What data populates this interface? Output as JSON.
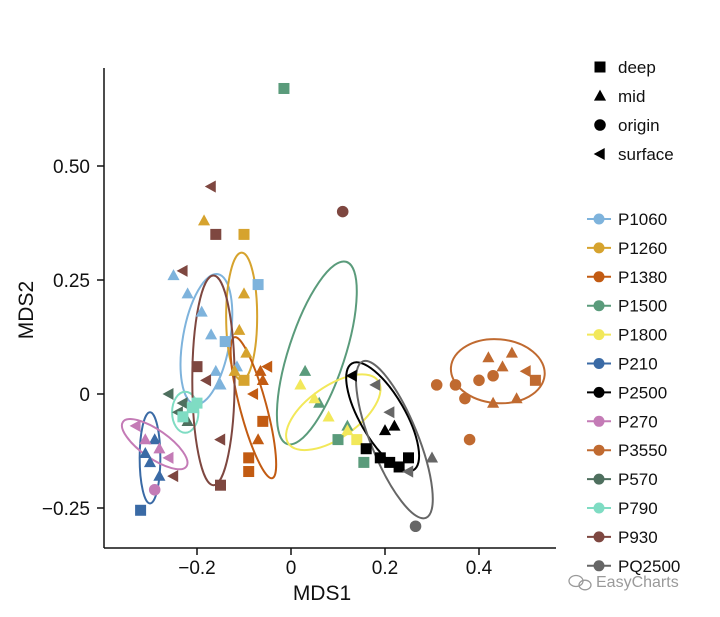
{
  "watermark": "EasyCharts",
  "chart_data": {
    "type": "scatter",
    "title": "",
    "xlabel": "MDS1",
    "ylabel": "MDS2",
    "xlim": [
      -0.37,
      0.55
    ],
    "ylim": [
      -0.34,
      0.72
    ],
    "x_ticks": [
      -0.2,
      0.0,
      0.2,
      0.4
    ],
    "x_tick_labels": [
      "−0.2",
      "0",
      "0.2",
      "0.4"
    ],
    "y_ticks": [
      -0.25,
      0.0,
      0.25,
      0.5
    ],
    "y_tick_labels": [
      "−0.25",
      "0",
      "0.25",
      "0.50"
    ],
    "grid": false,
    "shape_legend": [
      {
        "shape": "square",
        "label": "deep"
      },
      {
        "shape": "triangle",
        "label": "mid"
      },
      {
        "shape": "circle",
        "label": "origin"
      },
      {
        "shape": "left-triangle",
        "label": "surface"
      }
    ],
    "series": [
      {
        "name": "P1060",
        "color": "#7eb3dc",
        "ellipse": {
          "cx": -0.18,
          "cy": 0.12,
          "rx": 0.05,
          "ry": 0.145,
          "angle": 10
        },
        "points": [
          {
            "x": -0.25,
            "y": 0.26,
            "shape": "triangle"
          },
          {
            "x": -0.22,
            "y": 0.22,
            "shape": "triangle"
          },
          {
            "x": -0.19,
            "y": 0.18,
            "shape": "triangle"
          },
          {
            "x": -0.17,
            "y": 0.13,
            "shape": "triangle"
          },
          {
            "x": -0.16,
            "y": 0.05,
            "shape": "triangle"
          },
          {
            "x": -0.15,
            "y": 0.02,
            "shape": "triangle"
          },
          {
            "x": -0.14,
            "y": 0.115,
            "shape": "square"
          },
          {
            "x": -0.115,
            "y": 0.06,
            "shape": "triangle"
          },
          {
            "x": -0.07,
            "y": 0.24,
            "shape": "square"
          }
        ]
      },
      {
        "name": "P1260",
        "color": "#d6a32e",
        "ellipse": {
          "cx": -0.105,
          "cy": 0.17,
          "rx": 0.033,
          "ry": 0.14,
          "angle": 0
        },
        "points": [
          {
            "x": -0.185,
            "y": 0.38,
            "shape": "triangle"
          },
          {
            "x": -0.1,
            "y": 0.35,
            "shape": "square"
          },
          {
            "x": -0.1,
            "y": 0.22,
            "shape": "triangle"
          },
          {
            "x": -0.11,
            "y": 0.14,
            "shape": "triangle"
          },
          {
            "x": -0.095,
            "y": 0.09,
            "shape": "triangle"
          },
          {
            "x": -0.12,
            "y": 0.05,
            "shape": "triangle"
          },
          {
            "x": -0.1,
            "y": 0.03,
            "shape": "square"
          }
        ]
      },
      {
        "name": "P1380",
        "color": "#c25b12",
        "ellipse": {
          "cx": -0.08,
          "cy": -0.03,
          "rx": 0.028,
          "ry": 0.16,
          "angle": -15
        },
        "points": [
          {
            "x": -0.065,
            "y": 0.05,
            "shape": "triangle"
          },
          {
            "x": -0.06,
            "y": 0.03,
            "shape": "triangle"
          },
          {
            "x": -0.06,
            "y": -0.06,
            "shape": "square"
          },
          {
            "x": -0.07,
            "y": -0.1,
            "shape": "triangle"
          },
          {
            "x": -0.09,
            "y": -0.14,
            "shape": "square"
          },
          {
            "x": -0.09,
            "y": -0.17,
            "shape": "square"
          },
          {
            "x": -0.08,
            "y": 0.0,
            "shape": "left-triangle"
          },
          {
            "x": -0.05,
            "y": 0.06,
            "shape": "left-triangle"
          }
        ]
      },
      {
        "name": "P1500",
        "color": "#5a9b7b",
        "ellipse": {
          "cx": 0.055,
          "cy": 0.09,
          "rx": 0.06,
          "ry": 0.21,
          "angle": 18
        },
        "points": [
          {
            "x": -0.015,
            "y": 0.67,
            "shape": "square"
          },
          {
            "x": 0.03,
            "y": 0.05,
            "shape": "triangle"
          },
          {
            "x": 0.06,
            "y": -0.02,
            "shape": "triangle"
          },
          {
            "x": 0.1,
            "y": -0.1,
            "shape": "square"
          },
          {
            "x": 0.155,
            "y": -0.15,
            "shape": "square"
          },
          {
            "x": 0.12,
            "y": -0.07,
            "shape": "triangle"
          }
        ]
      },
      {
        "name": "P1800",
        "color": "#f2e85a",
        "ellipse": {
          "cx": 0.09,
          "cy": -0.04,
          "rx": 0.055,
          "ry": 0.12,
          "angle": 55
        },
        "points": [
          {
            "x": 0.02,
            "y": 0.02,
            "shape": "triangle"
          },
          {
            "x": 0.05,
            "y": -0.01,
            "shape": "triangle"
          },
          {
            "x": 0.08,
            "y": -0.05,
            "shape": "triangle"
          },
          {
            "x": 0.12,
            "y": -0.08,
            "shape": "triangle"
          },
          {
            "x": 0.14,
            "y": -0.1,
            "shape": "square"
          }
        ]
      },
      {
        "name": "P210",
        "color": "#3a6aa5",
        "ellipse": {
          "cx": -0.3,
          "cy": -0.14,
          "rx": 0.022,
          "ry": 0.1,
          "angle": 0
        },
        "points": [
          {
            "x": -0.32,
            "y": -0.255,
            "shape": "square"
          },
          {
            "x": -0.3,
            "y": -0.15,
            "shape": "triangle"
          },
          {
            "x": -0.29,
            "y": -0.1,
            "shape": "triangle"
          },
          {
            "x": -0.28,
            "y": -0.18,
            "shape": "triangle"
          },
          {
            "x": -0.31,
            "y": -0.13,
            "shape": "triangle"
          }
        ]
      },
      {
        "name": "P2500",
        "color": "#000000",
        "ellipse": {
          "cx": 0.195,
          "cy": -0.05,
          "rx": 0.048,
          "ry": 0.135,
          "angle": -30
        },
        "points": [
          {
            "x": 0.13,
            "y": 0.04,
            "shape": "left-triangle"
          },
          {
            "x": 0.2,
            "y": -0.08,
            "shape": "triangle"
          },
          {
            "x": 0.22,
            "y": -0.07,
            "shape": "triangle"
          },
          {
            "x": 0.16,
            "y": -0.12,
            "shape": "square"
          },
          {
            "x": 0.19,
            "y": -0.14,
            "shape": "square"
          },
          {
            "x": 0.21,
            "y": -0.15,
            "shape": "square"
          },
          {
            "x": 0.23,
            "y": -0.16,
            "shape": "square"
          },
          {
            "x": 0.25,
            "y": -0.14,
            "shape": "square"
          }
        ]
      },
      {
        "name": "P270",
        "color": "#c47bb6",
        "ellipse": {
          "cx": -0.29,
          "cy": -0.11,
          "rx": 0.03,
          "ry": 0.085,
          "angle": -55
        },
        "points": [
          {
            "x": -0.33,
            "y": -0.07,
            "shape": "left-triangle"
          },
          {
            "x": -0.31,
            "y": -0.1,
            "shape": "triangle"
          },
          {
            "x": -0.28,
            "y": -0.12,
            "shape": "triangle"
          },
          {
            "x": -0.26,
            "y": -0.14,
            "shape": "left-triangle"
          },
          {
            "x": -0.29,
            "y": -0.21,
            "shape": "circle"
          }
        ]
      },
      {
        "name": "P3550",
        "color": "#c06a30",
        "ellipse": {
          "cx": 0.44,
          "cy": 0.05,
          "rx": 0.1,
          "ry": 0.07,
          "angle": 5
        },
        "points": [
          {
            "x": 0.31,
            "y": 0.02,
            "shape": "circle"
          },
          {
            "x": 0.35,
            "y": 0.02,
            "shape": "circle"
          },
          {
            "x": 0.37,
            "y": -0.01,
            "shape": "circle"
          },
          {
            "x": 0.4,
            "y": 0.03,
            "shape": "circle"
          },
          {
            "x": 0.43,
            "y": 0.04,
            "shape": "circle"
          },
          {
            "x": 0.38,
            "y": -0.1,
            "shape": "circle"
          },
          {
            "x": 0.42,
            "y": 0.08,
            "shape": "triangle"
          },
          {
            "x": 0.45,
            "y": 0.06,
            "shape": "triangle"
          },
          {
            "x": 0.47,
            "y": 0.09,
            "shape": "triangle"
          },
          {
            "x": 0.5,
            "y": 0.05,
            "shape": "left-triangle"
          },
          {
            "x": 0.52,
            "y": 0.03,
            "shape": "square"
          },
          {
            "x": 0.43,
            "y": -0.02,
            "shape": "triangle"
          },
          {
            "x": 0.48,
            "y": -0.01,
            "shape": "triangle"
          }
        ]
      },
      {
        "name": "P570",
        "color": "#4e6f5e",
        "ellipse": null,
        "points": [
          {
            "x": -0.26,
            "y": 0.0,
            "shape": "left-triangle"
          },
          {
            "x": -0.24,
            "y": -0.04,
            "shape": "left-triangle"
          },
          {
            "x": -0.22,
            "y": -0.06,
            "shape": "triangle"
          },
          {
            "x": -0.23,
            "y": -0.02,
            "shape": "left-triangle"
          }
        ]
      },
      {
        "name": "P790",
        "color": "#7fdcc3",
        "ellipse": {
          "cx": -0.225,
          "cy": -0.04,
          "rx": 0.028,
          "ry": 0.045,
          "angle": 0
        },
        "points": [
          {
            "x": -0.21,
            "y": -0.03,
            "shape": "square"
          },
          {
            "x": -0.23,
            "y": -0.05,
            "shape": "square"
          },
          {
            "x": -0.2,
            "y": -0.02,
            "shape": "square"
          }
        ]
      },
      {
        "name": "P930",
        "color": "#7e4740",
        "ellipse": {
          "cx": -0.165,
          "cy": 0.03,
          "rx": 0.045,
          "ry": 0.23,
          "angle": 0
        },
        "points": [
          {
            "x": -0.17,
            "y": 0.455,
            "shape": "left-triangle"
          },
          {
            "x": -0.16,
            "y": 0.35,
            "shape": "square"
          },
          {
            "x": -0.23,
            "y": 0.27,
            "shape": "left-triangle"
          },
          {
            "x": -0.2,
            "y": 0.06,
            "shape": "square"
          },
          {
            "x": -0.18,
            "y": 0.03,
            "shape": "left-triangle"
          },
          {
            "x": -0.15,
            "y": -0.1,
            "shape": "left-triangle"
          },
          {
            "x": -0.25,
            "y": -0.18,
            "shape": "left-triangle"
          },
          {
            "x": -0.15,
            "y": -0.2,
            "shape": "square"
          },
          {
            "x": 0.11,
            "y": 0.4,
            "shape": "circle"
          }
        ]
      },
      {
        "name": "PQ2500",
        "color": "#666666",
        "ellipse": {
          "cx": 0.22,
          "cy": -0.1,
          "rx": 0.05,
          "ry": 0.185,
          "angle": -22
        },
        "points": [
          {
            "x": 0.18,
            "y": 0.02,
            "shape": "left-triangle"
          },
          {
            "x": 0.21,
            "y": -0.04,
            "shape": "left-triangle"
          },
          {
            "x": 0.25,
            "y": -0.17,
            "shape": "left-triangle"
          },
          {
            "x": 0.265,
            "y": -0.29,
            "shape": "circle"
          },
          {
            "x": 0.3,
            "y": -0.14,
            "shape": "triangle"
          }
        ]
      }
    ]
  }
}
